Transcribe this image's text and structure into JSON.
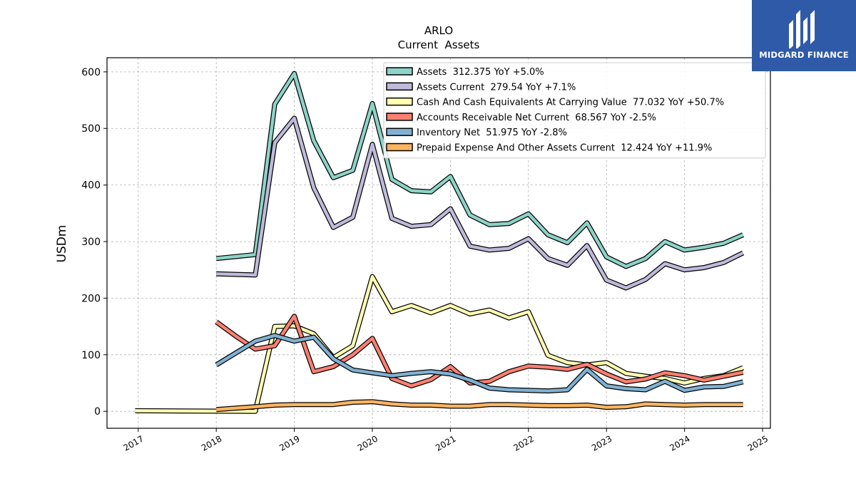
{
  "chart_data": {
    "type": "line",
    "title": "ARLO",
    "subtitle": "Current  Assets",
    "ylabel": "USDm",
    "xlabel": "",
    "xlim": [
      2016.6,
      2025.1
    ],
    "ylim": [
      -30,
      625
    ],
    "x_ticks": [
      {
        "v": 2017,
        "label": "2017"
      },
      {
        "v": 2018,
        "label": "2018"
      },
      {
        "v": 2019,
        "label": "2019"
      },
      {
        "v": 2020,
        "label": "2020"
      },
      {
        "v": 2021,
        "label": "2021"
      },
      {
        "v": 2022,
        "label": "2022"
      },
      {
        "v": 2023,
        "label": "2023"
      },
      {
        "v": 2024,
        "label": "2024"
      },
      {
        "v": 2025,
        "label": "2025"
      }
    ],
    "y_ticks": [
      {
        "v": 0,
        "label": "0"
      },
      {
        "v": 100,
        "label": "100"
      },
      {
        "v": 200,
        "label": "200"
      },
      {
        "v": 300,
        "label": "300"
      },
      {
        "v": 400,
        "label": "400"
      },
      {
        "v": 500,
        "label": "500"
      },
      {
        "v": 600,
        "label": "600"
      }
    ],
    "grid": true,
    "legend_position": "top-right",
    "series": [
      {
        "name": "Assets  312.375 YoY +5.0%",
        "color": "#8dd3c7",
        "points": [
          [
            2018.0,
            270
          ],
          [
            2018.5,
            277
          ],
          [
            2018.75,
            543
          ],
          [
            2019.0,
            597
          ],
          [
            2019.25,
            478
          ],
          [
            2019.5,
            413
          ],
          [
            2019.75,
            426
          ],
          [
            2020.0,
            544
          ],
          [
            2020.25,
            410
          ],
          [
            2020.5,
            390
          ],
          [
            2020.75,
            388
          ],
          [
            2021.0,
            415
          ],
          [
            2021.25,
            347
          ],
          [
            2021.5,
            330
          ],
          [
            2021.75,
            332
          ],
          [
            2022.0,
            349
          ],
          [
            2022.25,
            312
          ],
          [
            2022.5,
            298
          ],
          [
            2022.75,
            333
          ],
          [
            2023.0,
            273
          ],
          [
            2023.25,
            256
          ],
          [
            2023.5,
            270
          ],
          [
            2023.75,
            300
          ],
          [
            2024.0,
            285
          ],
          [
            2024.25,
            290
          ],
          [
            2024.5,
            297
          ],
          [
            2024.75,
            312
          ]
        ]
      },
      {
        "name": "Assets Current  279.54 YoY +7.1%",
        "color": "#bebada",
        "points": [
          [
            2018.0,
            243
          ],
          [
            2018.5,
            241
          ],
          [
            2018.75,
            475
          ],
          [
            2019.0,
            518
          ],
          [
            2019.25,
            395
          ],
          [
            2019.5,
            325
          ],
          [
            2019.75,
            343
          ],
          [
            2020.0,
            472
          ],
          [
            2020.25,
            341
          ],
          [
            2020.5,
            327
          ],
          [
            2020.75,
            330
          ],
          [
            2021.0,
            358
          ],
          [
            2021.25,
            292
          ],
          [
            2021.5,
            285
          ],
          [
            2021.75,
            288
          ],
          [
            2022.0,
            305
          ],
          [
            2022.25,
            270
          ],
          [
            2022.5,
            258
          ],
          [
            2022.75,
            293
          ],
          [
            2023.0,
            232
          ],
          [
            2023.25,
            218
          ],
          [
            2023.5,
            233
          ],
          [
            2023.75,
            261
          ],
          [
            2024.0,
            250
          ],
          [
            2024.25,
            254
          ],
          [
            2024.5,
            263
          ],
          [
            2024.75,
            280
          ]
        ]
      },
      {
        "name": "Cash And Cash Equivalents At Carrying Value  77.032 YoY +50.7%",
        "color": "#ffffb3",
        "points": [
          [
            2016.96,
            1
          ],
          [
            2018.5,
            0
          ],
          [
            2018.75,
            150
          ],
          [
            2019.0,
            151
          ],
          [
            2019.25,
            137
          ],
          [
            2019.5,
            95
          ],
          [
            2019.75,
            116
          ],
          [
            2020.0,
            238
          ],
          [
            2020.25,
            176
          ],
          [
            2020.5,
            187
          ],
          [
            2020.75,
            174
          ],
          [
            2021.0,
            187
          ],
          [
            2021.25,
            172
          ],
          [
            2021.5,
            179
          ],
          [
            2021.75,
            165
          ],
          [
            2022.0,
            176
          ],
          [
            2022.25,
            99
          ],
          [
            2022.5,
            86
          ],
          [
            2022.75,
            82
          ],
          [
            2023.0,
            86
          ],
          [
            2023.25,
            67
          ],
          [
            2023.5,
            62
          ],
          [
            2023.75,
            58
          ],
          [
            2024.0,
            50
          ],
          [
            2024.25,
            58
          ],
          [
            2024.5,
            63
          ],
          [
            2024.75,
            77
          ]
        ]
      },
      {
        "name": "Accounts Receivable Net Current  68.567 YoY -2.5%",
        "color": "#fb8072",
        "points": [
          [
            2018.0,
            158
          ],
          [
            2018.25,
            133
          ],
          [
            2018.5,
            110
          ],
          [
            2018.75,
            116
          ],
          [
            2019.0,
            168
          ],
          [
            2019.25,
            70
          ],
          [
            2019.5,
            79
          ],
          [
            2019.75,
            100
          ],
          [
            2020.0,
            129
          ],
          [
            2020.25,
            58
          ],
          [
            2020.5,
            45
          ],
          [
            2020.75,
            56
          ],
          [
            2021.0,
            79
          ],
          [
            2021.25,
            50
          ],
          [
            2021.5,
            53
          ],
          [
            2021.75,
            70
          ],
          [
            2022.0,
            80
          ],
          [
            2022.25,
            78
          ],
          [
            2022.5,
            74
          ],
          [
            2022.75,
            83
          ],
          [
            2023.0,
            66
          ],
          [
            2023.25,
            52
          ],
          [
            2023.5,
            57
          ],
          [
            2023.75,
            68
          ],
          [
            2024.0,
            63
          ],
          [
            2024.25,
            55
          ],
          [
            2024.5,
            62
          ],
          [
            2024.75,
            69
          ]
        ]
      },
      {
        "name": "Inventory Net  51.975 YoY -2.8%",
        "color": "#80b1d3",
        "points": [
          [
            2018.0,
            82
          ],
          [
            2018.25,
            103
          ],
          [
            2018.5,
            124
          ],
          [
            2018.75,
            134
          ],
          [
            2019.0,
            124
          ],
          [
            2019.25,
            131
          ],
          [
            2019.5,
            93
          ],
          [
            2019.75,
            73
          ],
          [
            2020.0,
            68
          ],
          [
            2020.25,
            63
          ],
          [
            2020.5,
            67
          ],
          [
            2020.75,
            70
          ],
          [
            2021.0,
            66
          ],
          [
            2021.25,
            55
          ],
          [
            2021.5,
            41
          ],
          [
            2021.75,
            38
          ],
          [
            2022.0,
            37
          ],
          [
            2022.25,
            36
          ],
          [
            2022.5,
            38
          ],
          [
            2022.75,
            74
          ],
          [
            2023.0,
            45
          ],
          [
            2023.25,
            40
          ],
          [
            2023.5,
            38
          ],
          [
            2023.75,
            53
          ],
          [
            2024.0,
            37
          ],
          [
            2024.25,
            43
          ],
          [
            2024.5,
            44
          ],
          [
            2024.75,
            52
          ]
        ]
      },
      {
        "name": "Prepaid Expense And Other Assets Current  12.424 YoY +11.9%",
        "color": "#fdb462",
        "points": [
          [
            2018.0,
            3
          ],
          [
            2018.5,
            8
          ],
          [
            2018.75,
            11
          ],
          [
            2019.0,
            12
          ],
          [
            2019.25,
            12
          ],
          [
            2019.5,
            12
          ],
          [
            2019.75,
            16
          ],
          [
            2020.0,
            17
          ],
          [
            2020.25,
            13
          ],
          [
            2020.5,
            11
          ],
          [
            2020.75,
            11
          ],
          [
            2021.0,
            9
          ],
          [
            2021.25,
            9
          ],
          [
            2021.5,
            12
          ],
          [
            2021.75,
            12
          ],
          [
            2022.0,
            11
          ],
          [
            2022.25,
            10
          ],
          [
            2022.5,
            10
          ],
          [
            2022.75,
            11
          ],
          [
            2023.0,
            7
          ],
          [
            2023.25,
            8
          ],
          [
            2023.5,
            13
          ],
          [
            2023.75,
            12
          ],
          [
            2024.0,
            11
          ],
          [
            2024.25,
            12
          ],
          [
            2024.5,
            12
          ],
          [
            2024.75,
            12
          ]
        ]
      }
    ]
  },
  "logo": {
    "text": "MIDGARD FINANCE",
    "color": "#2f5aa8"
  }
}
